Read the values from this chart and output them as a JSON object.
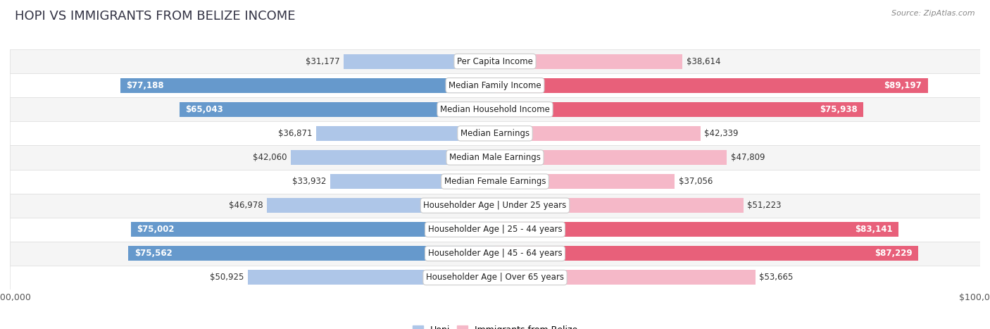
{
  "title": "HOPI VS IMMIGRANTS FROM BELIZE INCOME",
  "source": "Source: ZipAtlas.com",
  "categories": [
    "Per Capita Income",
    "Median Family Income",
    "Median Household Income",
    "Median Earnings",
    "Median Male Earnings",
    "Median Female Earnings",
    "Householder Age | Under 25 years",
    "Householder Age | 25 - 44 years",
    "Householder Age | 45 - 64 years",
    "Householder Age | Over 65 years"
  ],
  "hopi_values": [
    31177,
    77188,
    65043,
    36871,
    42060,
    33932,
    46978,
    75002,
    75562,
    50925
  ],
  "belize_values": [
    38614,
    89197,
    75938,
    42339,
    47809,
    37056,
    51223,
    83141,
    87229,
    53665
  ],
  "hopi_color_light": "#aec6e8",
  "hopi_color_dark": "#6699cc",
  "belize_color_light": "#f5b8c8",
  "belize_color_dark": "#e8607a",
  "bar_height": 0.62,
  "max_value": 100000,
  "background_color": "#ffffff",
  "row_colors": [
    "#f5f5f5",
    "#ffffff"
  ],
  "row_border_color": "#dddddd",
  "title_fontsize": 13,
  "label_fontsize": 8.5,
  "tick_fontsize": 9,
  "value_inside_threshold": 60000,
  "belize_inside_threshold": 70000
}
